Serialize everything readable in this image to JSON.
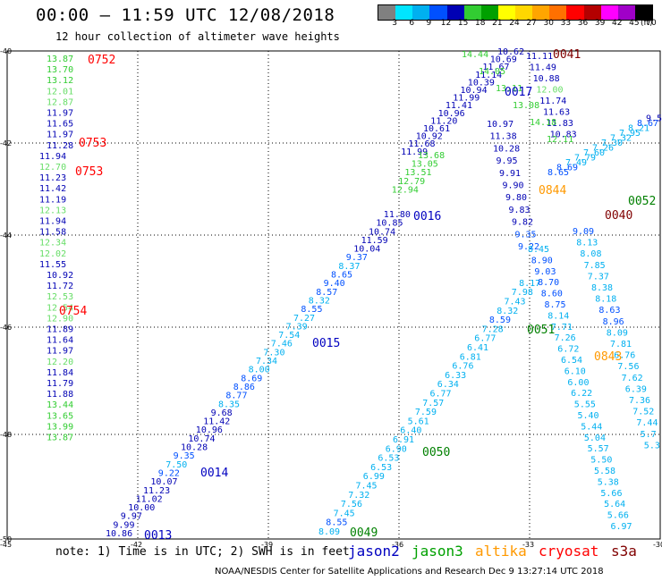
{
  "header": {
    "title": "00:00 — 11:59 UTC 12/08/2018",
    "subtitle": "12 hour collection of altimeter wave heights"
  },
  "legend": {
    "swatches": [
      {
        "label": "3",
        "color": "#808080"
      },
      {
        "label": "6",
        "color": "#00e5ff"
      },
      {
        "label": "9",
        "color": "#00b0f0"
      },
      {
        "label": "12",
        "color": "#0050ff"
      },
      {
        "label": "15",
        "color": "#0000b4"
      },
      {
        "label": "18",
        "color": "#32cd32"
      },
      {
        "label": "21",
        "color": "#00a000"
      },
      {
        "label": "24",
        "color": "#ffff00"
      },
      {
        "label": "27",
        "color": "#ffd700"
      },
      {
        "label": "30",
        "color": "#ffa500"
      },
      {
        "label": "33",
        "color": "#ff7000"
      },
      {
        "label": "36",
        "color": "#ff0000"
      },
      {
        "label": "39",
        "color": "#b40000"
      },
      {
        "label": "42",
        "color": "#ff00ff"
      },
      {
        "label": "45",
        "color": "#a000c8"
      },
      {
        "label": "70",
        "color": "#000000"
      }
    ],
    "unit": "(ft)"
  },
  "map": {
    "lat_labels": [
      "-40",
      "-42",
      "-44",
      "-46",
      "-48",
      "-50"
    ],
    "lon_labels": [
      "-45",
      "-42",
      "-39",
      "-36",
      "-33",
      "-30"
    ]
  },
  "tracks": [
    {
      "id": "0752",
      "color": "#ff0000",
      "label_color": "#ff0000"
    },
    {
      "id": "0753",
      "color": "#ff0000",
      "label_color": "#ff0000"
    },
    {
      "id": "0753",
      "color": "#ff0000",
      "label_color": "#ff0000"
    },
    {
      "id": "0754",
      "color": "#ff0000",
      "label_color": "#ff0000"
    },
    {
      "id": "0013",
      "color": "#0000c0",
      "label_color": "#0000c0"
    },
    {
      "id": "0014",
      "color": "#0000c0",
      "label_color": "#0000c0"
    },
    {
      "id": "0015",
      "color": "#0000c0",
      "label_color": "#0000c0"
    },
    {
      "id": "0016",
      "color": "#0000c0",
      "label_color": "#0000c0"
    },
    {
      "id": "0017",
      "color": "#0000c0",
      "label_color": "#0000c0"
    },
    {
      "id": "0049",
      "color": "#008000",
      "label_color": "#008000"
    },
    {
      "id": "0050",
      "color": "#008000",
      "label_color": "#008000"
    },
    {
      "id": "0051",
      "color": "#008000",
      "label_color": "#008000"
    },
    {
      "id": "0052",
      "color": "#008000",
      "label_color": "#008000"
    },
    {
      "id": "0843",
      "color": "#ff9900",
      "label_color": "#ff9900"
    },
    {
      "id": "0844",
      "color": "#ff9900",
      "label_color": "#ff9900"
    },
    {
      "id": "0040",
      "color": "#800000",
      "label_color": "#800000"
    },
    {
      "id": "0041",
      "color": "#800000",
      "label_color": "#800000"
    }
  ],
  "left_column": [
    "13.87",
    "13.70",
    "13.12",
    "12.01",
    "12.87",
    "11.97",
    "11.65",
    "11.97",
    "11.28",
    "11.94",
    "12.70",
    "11.23",
    "11.42",
    "11.19",
    "12.13",
    "11.94",
    "11.58",
    "12.34",
    "12.02",
    "11.55",
    "10.92",
    "11.72",
    "12.53",
    "12.54",
    "12.90",
    "11.89",
    "11.64",
    "11.97",
    "12.20",
    "11.84",
    "11.79",
    "11.88",
    "13.44",
    "13.65",
    "13.99",
    "13.87"
  ],
  "jason2_a": [
    "10.86",
    "9.99",
    "9.97",
    "10.00",
    "11.02",
    "11.23",
    "10.07",
    "9.22",
    "7.50",
    "9.35",
    "10.28",
    "10.74",
    "10.96",
    "11.42",
    "9.68",
    "8.35",
    "8.77",
    "8.86",
    "8.69",
    "8.00",
    "7.34",
    "7.30",
    "7.46",
    "7.54",
    "7.39",
    "7.27",
    "8.55",
    "8.32",
    "8.57",
    "9.40",
    "8.65",
    "8.37",
    "9.37",
    "10.04",
    "11.59",
    "10.74",
    "10.85",
    "11.80"
  ],
  "jason2_b": [
    "10.62",
    "10.69",
    "11.67",
    "11.14",
    "10.39",
    "10.94",
    "11.99",
    "11.41",
    "10.96",
    "11.20",
    "10.61",
    "10.92",
    "11.68",
    "11.99"
  ],
  "jason2_c": [
    "11.11",
    "11.49",
    "10.88",
    "12.00",
    "11.74",
    "11.63",
    "11.83",
    "10.83"
  ],
  "jason2_d": [
    "10.97",
    "11.38",
    "10.28",
    "9.95",
    "9.91",
    "9.90",
    "9.80",
    "9.83",
    "9.82",
    "9.35",
    "9.22"
  ],
  "jason3_a": [
    "13.68",
    "13.05",
    "13.51",
    "12.79",
    "12.94"
  ],
  "jason3_b": [
    "14.44",
    "14.05",
    "13.11",
    "13.08",
    "14.18",
    "12.11"
  ],
  "cyan_a": [
    "8.09",
    "8.55",
    "7.45",
    "7.56",
    "7.32",
    "7.45",
    "6.99",
    "6.53",
    "6.53",
    "6.90",
    "6.91",
    "6.40",
    "5.61",
    "7.59",
    "7.57",
    "6.77",
    "6.34",
    "6.33",
    "6.76",
    "6.81",
    "6.41",
    "6.77",
    "7.28",
    "8.59",
    "8.32",
    "7.43",
    "7.98",
    "8.17"
  ],
  "cyan_b": [
    "8.45",
    "8.90",
    "9.03",
    "8.70",
    "8.60",
    "8.75",
    "8.14",
    "7.71",
    "7.26",
    "6.72",
    "6.54",
    "6.10",
    "6.00",
    "6.22",
    "5.55",
    "5.40",
    "5.44",
    "5.04",
    "5.57",
    "5.50",
    "5.58",
    "5.38",
    "5.66",
    "5.64",
    "5.66",
    "6.97"
  ],
  "cyan_c": [
    "8.65",
    "8.69",
    "7.49",
    "7.79",
    "7.60",
    "7.26",
    "7.30",
    "7.32",
    "7.95",
    "8.21",
    "8.67",
    "9.55",
    "9.09",
    "8.13",
    "8.08",
    "7.85",
    "7.37",
    "8.38",
    "8.18",
    "8.63",
    "8.96",
    "8.09",
    "7.81",
    "6.76",
    "7.56",
    "7.62",
    "6.39",
    "7.36",
    "7.52",
    "7.44",
    "5.7",
    "5.3"
  ],
  "satellites": [
    {
      "name": "jason2",
      "color": "#0000c0"
    },
    {
      "name": "jason3",
      "color": "#00a000"
    },
    {
      "name": "altika",
      "color": "#ff9900"
    },
    {
      "name": "cryosat",
      "color": "#ff0000"
    },
    {
      "name": "s3a",
      "color": "#800000"
    }
  ],
  "footer": {
    "note": "note: 1) Time is in UTC; 2) SWH is in feet",
    "credit": "NOAA/NESDIS Center for Satellite Applications and Research   Dec  9 13:27:14 UTC 2018"
  }
}
